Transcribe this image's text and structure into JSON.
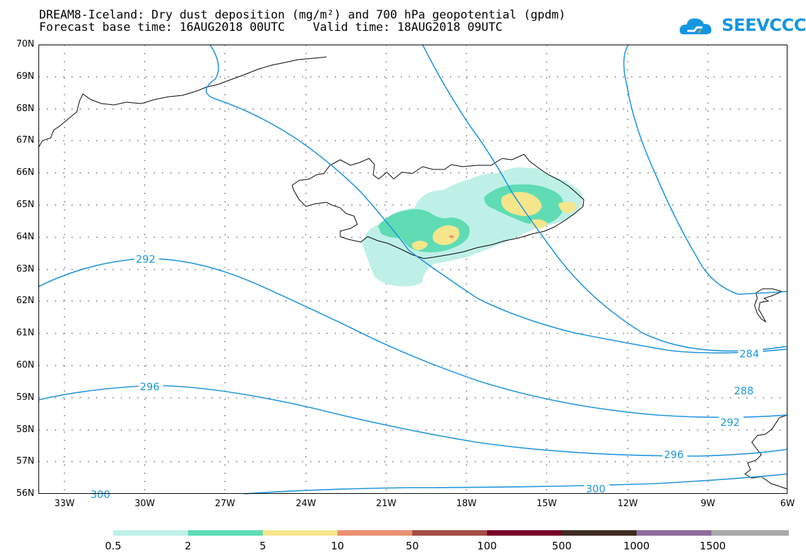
{
  "title": {
    "line1": "DREAM8-Iceland: Dry dust deposition (mg/m²) and 700 hPa geopotential (gpdm)",
    "line2": "Forecast base time: 16AUG2018 00UTC    Valid time: 18AUG2018 09UTC"
  },
  "logo": {
    "text": "SEEVCCC"
  },
  "axes": {
    "lat_labels": [
      "70N",
      "69N",
      "68N",
      "67N",
      "66N",
      "65N",
      "64N",
      "63N",
      "62N",
      "61N",
      "60N",
      "59N",
      "58N",
      "57N",
      "56N"
    ],
    "lon_labels": [
      "33W",
      "30W",
      "27W",
      "24W",
      "21W",
      "18W",
      "15W",
      "12W",
      "9W",
      "6W"
    ],
    "lat_range": [
      56,
      70
    ],
    "lon_range": [
      -34.4,
      -6
    ]
  },
  "contour_labels": [
    "292",
    "296",
    "300",
    "284",
    "288",
    "292",
    "296",
    "300"
  ],
  "colors": {
    "contour": "#1f95dd",
    "coast": "#000000",
    "grid": "#555555"
  },
  "legend": {
    "labels": [
      "0.5",
      "2",
      "5",
      "10",
      "50",
      "100",
      "500",
      "1000",
      "1500"
    ],
    "colors": [
      "#bff0e8",
      "#5fdcb4",
      "#f5e68c",
      "#e99173",
      "#a24e46",
      "#780028",
      "#3e2b22",
      "#8d6b9b",
      "#a8a8a8"
    ]
  }
}
